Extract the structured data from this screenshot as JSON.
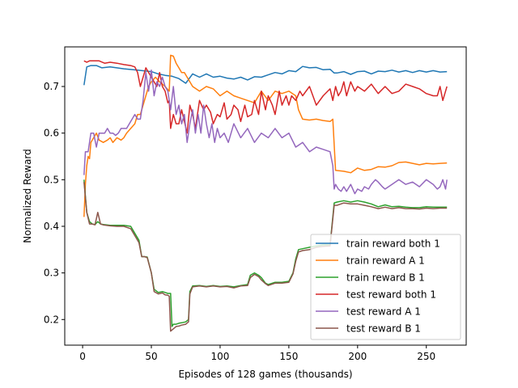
{
  "chart_data": {
    "type": "line",
    "xlabel": "Episodes of 128 games (thousands)",
    "ylabel": "Normalized Reward",
    "xlim": [
      -13,
      279
    ],
    "ylim": [
      0.145,
      0.785
    ],
    "xticks": [
      0,
      50,
      100,
      150,
      200,
      250
    ],
    "yticks": [
      0.2,
      0.3,
      0.4,
      0.5,
      0.6,
      0.7
    ],
    "grid": false,
    "legend_position": "lower-right",
    "series": [
      {
        "name": "train reward both 1",
        "color": "#1f77b4",
        "x": [
          1,
          3,
          6,
          10,
          14,
          20,
          30,
          40,
          50,
          55,
          60,
          65,
          70,
          75,
          80,
          85,
          90,
          95,
          100,
          105,
          110,
          115,
          120,
          125,
          130,
          135,
          140,
          145,
          150,
          155,
          160,
          165,
          170,
          175,
          180,
          183,
          185,
          190,
          195,
          200,
          205,
          210,
          215,
          220,
          225,
          230,
          235,
          240,
          245,
          250,
          255,
          260,
          265
        ],
        "values": [
          0.703,
          0.742,
          0.745,
          0.745,
          0.74,
          0.742,
          0.738,
          0.735,
          0.732,
          0.727,
          0.724,
          0.722,
          0.717,
          0.707,
          0.727,
          0.72,
          0.727,
          0.72,
          0.722,
          0.718,
          0.716,
          0.72,
          0.714,
          0.721,
          0.72,
          0.725,
          0.73,
          0.727,
          0.734,
          0.732,
          0.743,
          0.74,
          0.741,
          0.736,
          0.737,
          0.729,
          0.729,
          0.732,
          0.726,
          0.732,
          0.733,
          0.727,
          0.733,
          0.732,
          0.735,
          0.731,
          0.734,
          0.73,
          0.734,
          0.731,
          0.734,
          0.731,
          0.732
        ]
      },
      {
        "name": "train reward A 1",
        "color": "#ff7f0e",
        "x": [
          1,
          2,
          3,
          4,
          5,
          6,
          8,
          10,
          12,
          15,
          18,
          20,
          22,
          25,
          28,
          30,
          32,
          35,
          38,
          40,
          42,
          44,
          46,
          48,
          50,
          53,
          56,
          60,
          63,
          64,
          66,
          68,
          70,
          72,
          74,
          76,
          78,
          80,
          85,
          90,
          95,
          100,
          105,
          110,
          115,
          120,
          125,
          130,
          135,
          140,
          145,
          150,
          155,
          157,
          160,
          165,
          170,
          175,
          180,
          182,
          184,
          190,
          195,
          200,
          205,
          210,
          215,
          220,
          225,
          230,
          235,
          240,
          245,
          250,
          255,
          260,
          265
        ],
        "values": [
          0.42,
          0.49,
          0.53,
          0.55,
          0.545,
          0.58,
          0.59,
          0.6,
          0.585,
          0.58,
          0.585,
          0.59,
          0.58,
          0.59,
          0.585,
          0.59,
          0.6,
          0.61,
          0.62,
          0.64,
          0.64,
          0.66,
          0.68,
          0.7,
          0.71,
          0.72,
          0.71,
          0.7,
          0.69,
          0.767,
          0.765,
          0.75,
          0.74,
          0.73,
          0.73,
          0.72,
          0.71,
          0.7,
          0.69,
          0.7,
          0.695,
          0.68,
          0.69,
          0.68,
          0.675,
          0.67,
          0.665,
          0.69,
          0.67,
          0.69,
          0.685,
          0.69,
          0.68,
          0.65,
          0.63,
          0.628,
          0.63,
          0.627,
          0.625,
          0.63,
          0.52,
          0.518,
          0.515,
          0.525,
          0.52,
          0.522,
          0.528,
          0.527,
          0.53,
          0.537,
          0.538,
          0.535,
          0.532,
          0.535,
          0.534,
          0.535,
          0.536
        ]
      },
      {
        "name": "train reward B 1",
        "color": "#2ca02c",
        "x": [
          1,
          3,
          5,
          7,
          9,
          11,
          13,
          15,
          20,
          25,
          30,
          35,
          37,
          39,
          41,
          43,
          45,
          47,
          50,
          52,
          55,
          58,
          60,
          62,
          64,
          65,
          66,
          68,
          70,
          72,
          75,
          77,
          78,
          80,
          85,
          90,
          95,
          100,
          105,
          110,
          115,
          120,
          122,
          125,
          128,
          130,
          133,
          135,
          140,
          145,
          150,
          153,
          155,
          157,
          160,
          165,
          170,
          175,
          180,
          183,
          185,
          190,
          195,
          200,
          205,
          210,
          215,
          220,
          225,
          230,
          235,
          240,
          245,
          250,
          255,
          260,
          265
        ],
        "values": [
          0.5,
          0.43,
          0.41,
          0.405,
          0.404,
          0.41,
          0.405,
          0.404,
          0.402,
          0.402,
          0.402,
          0.4,
          0.39,
          0.38,
          0.37,
          0.335,
          0.335,
          0.334,
          0.3,
          0.265,
          0.258,
          0.26,
          0.258,
          0.256,
          0.256,
          0.185,
          0.19,
          0.19,
          0.192,
          0.193,
          0.195,
          0.2,
          0.26,
          0.272,
          0.273,
          0.271,
          0.273,
          0.271,
          0.272,
          0.27,
          0.273,
          0.275,
          0.295,
          0.3,
          0.295,
          0.29,
          0.278,
          0.275,
          0.28,
          0.28,
          0.282,
          0.3,
          0.33,
          0.35,
          0.352,
          0.355,
          0.358,
          0.36,
          0.36,
          0.45,
          0.452,
          0.455,
          0.452,
          0.455,
          0.452,
          0.448,
          0.442,
          0.446,
          0.442,
          0.443,
          0.441,
          0.44,
          0.44,
          0.442,
          0.441,
          0.441,
          0.441
        ]
      },
      {
        "name": "test reward both 1",
        "color": "#d62728",
        "x": [
          1,
          3,
          5,
          8,
          12,
          16,
          20,
          25,
          30,
          35,
          38,
          40,
          42,
          44,
          46,
          48,
          50,
          52,
          54,
          56,
          58,
          60,
          62,
          63,
          64,
          66,
          68,
          70,
          72,
          74,
          76,
          78,
          80,
          82,
          85,
          88,
          90,
          93,
          95,
          98,
          100,
          103,
          105,
          108,
          110,
          113,
          115,
          118,
          120,
          123,
          125,
          128,
          130,
          133,
          135,
          138,
          140,
          143,
          145,
          148,
          150,
          152,
          155,
          158,
          160,
          165,
          170,
          175,
          180,
          182,
          184,
          186,
          188,
          190,
          192,
          195,
          198,
          200,
          205,
          210,
          215,
          220,
          225,
          230,
          235,
          240,
          245,
          250,
          255,
          258,
          260,
          262,
          264,
          265
        ],
        "values": [
          0.755,
          0.752,
          0.755,
          0.755,
          0.755,
          0.75,
          0.752,
          0.75,
          0.747,
          0.745,
          0.742,
          0.73,
          0.7,
          0.72,
          0.74,
          0.73,
          0.72,
          0.71,
          0.7,
          0.73,
          0.7,
          0.69,
          0.665,
          0.67,
          0.61,
          0.64,
          0.62,
          0.62,
          0.65,
          0.625,
          0.6,
          0.66,
          0.64,
          0.61,
          0.67,
          0.65,
          0.66,
          0.645,
          0.62,
          0.64,
          0.635,
          0.665,
          0.63,
          0.64,
          0.66,
          0.65,
          0.625,
          0.66,
          0.635,
          0.64,
          0.67,
          0.64,
          0.69,
          0.65,
          0.68,
          0.66,
          0.64,
          0.69,
          0.66,
          0.68,
          0.66,
          0.68,
          0.67,
          0.69,
          0.68,
          0.7,
          0.66,
          0.68,
          0.695,
          0.67,
          0.7,
          0.68,
          0.69,
          0.71,
          0.68,
          0.71,
          0.69,
          0.7,
          0.69,
          0.705,
          0.685,
          0.7,
          0.685,
          0.69,
          0.705,
          0.7,
          0.695,
          0.685,
          0.68,
          0.68,
          0.7,
          0.67,
          0.69,
          0.7
        ]
      },
      {
        "name": "test reward A 1",
        "color": "#9467bd",
        "x": [
          1,
          2,
          3,
          4,
          6,
          8,
          10,
          12,
          14,
          16,
          18,
          20,
          22,
          24,
          26,
          28,
          30,
          32,
          34,
          36,
          38,
          40,
          42,
          44,
          46,
          48,
          50,
          52,
          54,
          56,
          58,
          60,
          62,
          64,
          66,
          68,
          70,
          72,
          74,
          76,
          78,
          80,
          82,
          84,
          86,
          88,
          90,
          92,
          94,
          96,
          98,
          100,
          103,
          106,
          110,
          115,
          120,
          125,
          130,
          135,
          140,
          145,
          150,
          155,
          160,
          165,
          170,
          175,
          180,
          182,
          183,
          184,
          186,
          188,
          190,
          192,
          195,
          198,
          200,
          203,
          205,
          208,
          210,
          213,
          215,
          218,
          220,
          225,
          230,
          235,
          240,
          245,
          250,
          255,
          258,
          260,
          262,
          264,
          265
        ],
        "values": [
          0.51,
          0.56,
          0.56,
          0.56,
          0.6,
          0.6,
          0.57,
          0.6,
          0.6,
          0.6,
          0.61,
          0.6,
          0.6,
          0.595,
          0.6,
          0.61,
          0.61,
          0.61,
          0.62,
          0.63,
          0.64,
          0.63,
          0.63,
          0.67,
          0.73,
          0.69,
          0.735,
          0.68,
          0.71,
          0.7,
          0.72,
          0.7,
          0.69,
          0.65,
          0.7,
          0.64,
          0.66,
          0.62,
          0.64,
          0.58,
          0.62,
          0.65,
          0.6,
          0.64,
          0.6,
          0.66,
          0.62,
          0.59,
          0.62,
          0.58,
          0.61,
          0.59,
          0.6,
          0.58,
          0.62,
          0.59,
          0.61,
          0.58,
          0.6,
          0.59,
          0.61,
          0.59,
          0.6,
          0.57,
          0.58,
          0.56,
          0.57,
          0.565,
          0.56,
          0.53,
          0.48,
          0.49,
          0.48,
          0.475,
          0.485,
          0.475,
          0.49,
          0.47,
          0.48,
          0.475,
          0.485,
          0.48,
          0.49,
          0.5,
          0.495,
          0.485,
          0.48,
          0.49,
          0.5,
          0.49,
          0.495,
          0.485,
          0.5,
          0.49,
          0.48,
          0.485,
          0.5,
          0.48,
          0.5
        ]
      },
      {
        "name": "test reward B 1",
        "color": "#8c564b",
        "x": [
          1,
          3,
          5,
          7,
          9,
          11,
          13,
          15,
          20,
          25,
          30,
          35,
          37,
          39,
          41,
          43,
          45,
          47,
          50,
          52,
          55,
          58,
          60,
          62,
          63,
          64,
          66,
          68,
          70,
          72,
          75,
          77,
          78,
          80,
          85,
          90,
          95,
          100,
          105,
          110,
          115,
          120,
          122,
          125,
          128,
          130,
          133,
          135,
          140,
          145,
          150,
          153,
          155,
          157,
          160,
          165,
          170,
          175,
          180,
          183,
          185,
          190,
          195,
          200,
          205,
          210,
          215,
          220,
          225,
          230,
          235,
          240,
          245,
          250,
          255,
          260,
          265
        ],
        "values": [
          0.495,
          0.43,
          0.405,
          0.405,
          0.403,
          0.43,
          0.405,
          0.403,
          0.401,
          0.4,
          0.4,
          0.395,
          0.385,
          0.375,
          0.365,
          0.335,
          0.335,
          0.333,
          0.3,
          0.26,
          0.255,
          0.257,
          0.253,
          0.252,
          0.25,
          0.175,
          0.18,
          0.185,
          0.186,
          0.188,
          0.19,
          0.195,
          0.255,
          0.27,
          0.272,
          0.27,
          0.272,
          0.27,
          0.271,
          0.268,
          0.272,
          0.273,
          0.29,
          0.297,
          0.292,
          0.285,
          0.277,
          0.273,
          0.278,
          0.278,
          0.28,
          0.298,
          0.325,
          0.345,
          0.348,
          0.35,
          0.355,
          0.357,
          0.358,
          0.445,
          0.445,
          0.45,
          0.448,
          0.448,
          0.445,
          0.442,
          0.438,
          0.441,
          0.438,
          0.44,
          0.438,
          0.438,
          0.437,
          0.439,
          0.438,
          0.439,
          0.439
        ]
      }
    ]
  }
}
